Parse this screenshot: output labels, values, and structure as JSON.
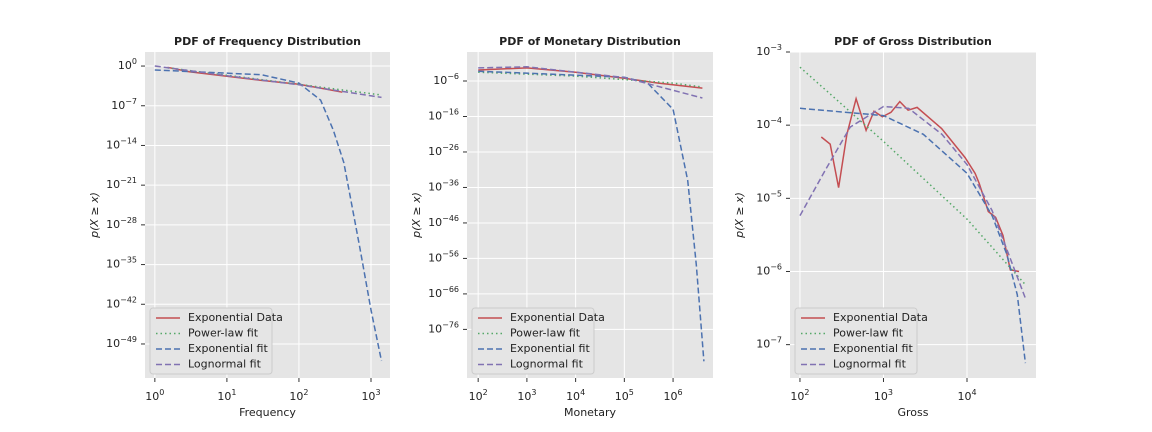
{
  "chart_data": [
    {
      "type": "line",
      "title": "PDF of Frequency Distribution",
      "xlabel": "Frequency",
      "ylabel": "p(X ≥ x)",
      "xscale": "log",
      "yscale": "log",
      "grid": true,
      "legend": "lower left",
      "xlim": [
        0.73,
        1836
      ],
      "ylim": [
        1e-55,
        300
      ],
      "xticks": [
        {
          "value": 1,
          "label": "10^0"
        },
        {
          "value": 10,
          "label": "10^1"
        },
        {
          "value": 100,
          "label": "10^2"
        },
        {
          "value": 1000,
          "label": "10^3"
        }
      ],
      "yticks": [
        {
          "value": 1,
          "label": "10^0"
        },
        {
          "value": 1e-07,
          "label": "10^-7"
        },
        {
          "value": 1e-14,
          "label": "10^-14"
        },
        {
          "value": 1e-21,
          "label": "10^-21"
        },
        {
          "value": 1e-28,
          "label": "10^-28"
        },
        {
          "value": 1e-35,
          "label": "10^-35"
        },
        {
          "value": 1e-42,
          "label": "10^-42"
        },
        {
          "value": 1e-49,
          "label": "10^-49"
        }
      ],
      "series": [
        {
          "name": "Exponential Data",
          "color": "#c44e52",
          "linestyle": "solid",
          "x": [
            1.5,
            3,
            10,
            30,
            100,
            200,
            400
          ],
          "values": [
            0.6,
            0.1,
            0.016,
            0.003,
            0.0006,
            0.00013,
            2.5e-05
          ]
        },
        {
          "name": "Power-law fit",
          "color": "#55a868",
          "linestyle": "dotted",
          "x": [
            1.5,
            100,
            1400
          ],
          "values": [
            0.5,
            0.0006,
            8e-06
          ]
        },
        {
          "name": "Exponential fit",
          "color": "#4c72b0",
          "linestyle": "dashed",
          "x": [
            1,
            30,
            100,
            200,
            300,
            420,
            700,
            1000,
            1400
          ],
          "values": [
            0.2,
            0.03,
            0.001,
            1e-06,
            5e-12,
            1e-17,
            1e-32,
            1e-43,
            1e-52
          ]
        },
        {
          "name": "Lognormal fit",
          "color": "#8172b2",
          "linestyle": "dashed",
          "x": [
            1,
            10,
            100,
            1400
          ],
          "values": [
            1,
            0.02,
            0.0005,
            3e-06
          ]
        }
      ]
    },
    {
      "type": "line",
      "title": "PDF of Monetary Distribution",
      "xlabel": "Monetary",
      "ylabel": "p(X ≥ x)",
      "xscale": "log",
      "yscale": "log",
      "grid": true,
      "legend": "lower left",
      "xlim": [
        59,
        6600000
      ],
      "ylim": [
        2e-90,
        150
      ],
      "xticks": [
        {
          "value": 100,
          "label": "10^2"
        },
        {
          "value": 1000,
          "label": "10^3"
        },
        {
          "value": 10000,
          "label": "10^4"
        },
        {
          "value": 100000,
          "label": "10^5"
        },
        {
          "value": 1000000,
          "label": "10^6"
        }
      ],
      "yticks": [
        {
          "value": 1e-06,
          "label": "10^-6"
        },
        {
          "value": 1e-16,
          "label": "10^-16"
        },
        {
          "value": 1e-26,
          "label": "10^-26"
        },
        {
          "value": 1e-36,
          "label": "10^-36"
        },
        {
          "value": 1e-46,
          "label": "10^-46"
        },
        {
          "value": 1e-56,
          "label": "10^-56"
        },
        {
          "value": 1e-66,
          "label": "10^-66"
        },
        {
          "value": 1e-76,
          "label": "10^-76"
        }
      ],
      "series": [
        {
          "name": "Exponential Data",
          "color": "#c44e52",
          "linestyle": "solid",
          "x": [
            100,
            1000,
            10000,
            100000,
            500000,
            4000000
          ],
          "values": [
            0.0013,
            0.005,
            0.0003,
            6e-06,
            2.5e-07,
            1e-08
          ]
        },
        {
          "name": "Power-law fit",
          "color": "#55a868",
          "linestyle": "dotted",
          "x": [
            100,
            10000,
            1000000,
            4000000
          ],
          "values": [
            0.0003,
            2.5e-05,
            2.5e-07,
            2e-08
          ]
        },
        {
          "name": "Exponential fit",
          "color": "#4c72b0",
          "linestyle": "dashed",
          "x": [
            100,
            100000,
            300000,
            1000000,
            2000000,
            3000000,
            4300000
          ],
          "values": [
            0.0006,
            1.2e-05,
            2.5e-07,
            1e-14,
            1e-34,
            1.6e-58,
            1e-85
          ]
        },
        {
          "name": "Lognormal fit",
          "color": "#8172b2",
          "linestyle": "dashed",
          "x": [
            100,
            1000,
            100000,
            4000000
          ],
          "values": [
            0.005,
            0.01,
            1e-05,
            1.6e-11
          ]
        }
      ]
    },
    {
      "type": "line",
      "title": "PDF of Gross Distribution",
      "xlabel": "Gross",
      "ylabel": "p(X ≥ x)",
      "xscale": "log",
      "yscale": "log",
      "grid": true,
      "legend": "lower left",
      "xlim": [
        76,
        67000
      ],
      "ylim": [
        3.5e-08,
        0.001
      ],
      "xticks": [
        {
          "value": 100,
          "label": "10^2"
        },
        {
          "value": 1000,
          "label": "10^3"
        },
        {
          "value": 10000,
          "label": "10^4"
        }
      ],
      "yticks": [
        {
          "value": 0.001,
          "label": "10^-3"
        },
        {
          "value": 0.0001,
          "label": "10^-4"
        },
        {
          "value": 1e-05,
          "label": "10^-5"
        },
        {
          "value": 1e-06,
          "label": "10^-6"
        },
        {
          "value": 1e-07,
          "label": "10^-7"
        }
      ],
      "series": [
        {
          "name": "Exponential Data",
          "color": "#c44e52",
          "linestyle": "solid",
          "x": [
            180,
            230,
            290,
            365,
            470,
            620,
            770,
            970,
            1230,
            1570,
            1970,
            2530,
            4960,
            9500,
            12500,
            14000,
            18000,
            22000,
            27000,
            33000,
            42000
          ],
          "values": [
            6.9e-05,
            5.5e-05,
            1.4e-05,
            7.5e-05,
            0.00023,
            8.5e-05,
            0.000155,
            0.00013,
            0.00015,
            0.00021,
            0.00016,
            0.000175,
            9e-05,
            3.6e-05,
            2.2e-05,
            1.6e-05,
            6.6e-06,
            5.5e-06,
            3.1e-06,
            1.05e-06,
            1e-06
          ]
        },
        {
          "name": "Power-law fit",
          "color": "#55a868",
          "linestyle": "dotted",
          "x": [
            100,
            1000,
            10000,
            50000
          ],
          "values": [
            0.00062,
            6e-05,
            5.2e-06,
            6.6e-07
          ]
        },
        {
          "name": "Exponential fit",
          "color": "#4c72b0",
          "linestyle": "dashed",
          "x": [
            100,
            1000,
            3000,
            10000,
            20000,
            30000,
            40000,
            50000
          ],
          "values": [
            0.00017,
            0.000135,
            7.5e-05,
            2.2e-05,
            5.8e-06,
            1.7e-06,
            4.8e-07,
            5.6e-08
          ]
        },
        {
          "name": "Lognormal fit",
          "color": "#8172b2",
          "linestyle": "dashed",
          "x": [
            100,
            200,
            400,
            1000,
            2000,
            5000,
            10000,
            20000,
            50000
          ],
          "values": [
            5.8e-06,
            2.4e-05,
            9.4e-05,
            0.00018,
            0.00017,
            7.5e-05,
            2.9e-05,
            6.8e-06,
            4.3e-07
          ]
        }
      ]
    }
  ]
}
